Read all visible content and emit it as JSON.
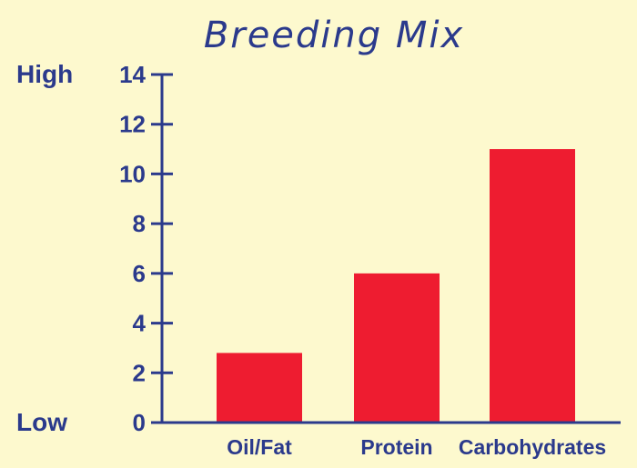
{
  "chart_data": {
    "type": "bar",
    "title": "Breeding Mix",
    "categories": [
      "Oil/Fat",
      "Protein",
      "Carbohydrates"
    ],
    "values": [
      2.8,
      6,
      11
    ],
    "ylim": [
      0,
      14
    ],
    "yticks": [
      "0",
      "2",
      "4",
      "6",
      "8",
      "10",
      "12",
      "14"
    ],
    "ylabel_high": "High",
    "ylabel_low": "Low",
    "grid": false,
    "colors": {
      "bar": "#ee1c30",
      "axis": "#2b3a8c",
      "text": "#2b3a8c",
      "background": "#fdf9ce"
    }
  }
}
